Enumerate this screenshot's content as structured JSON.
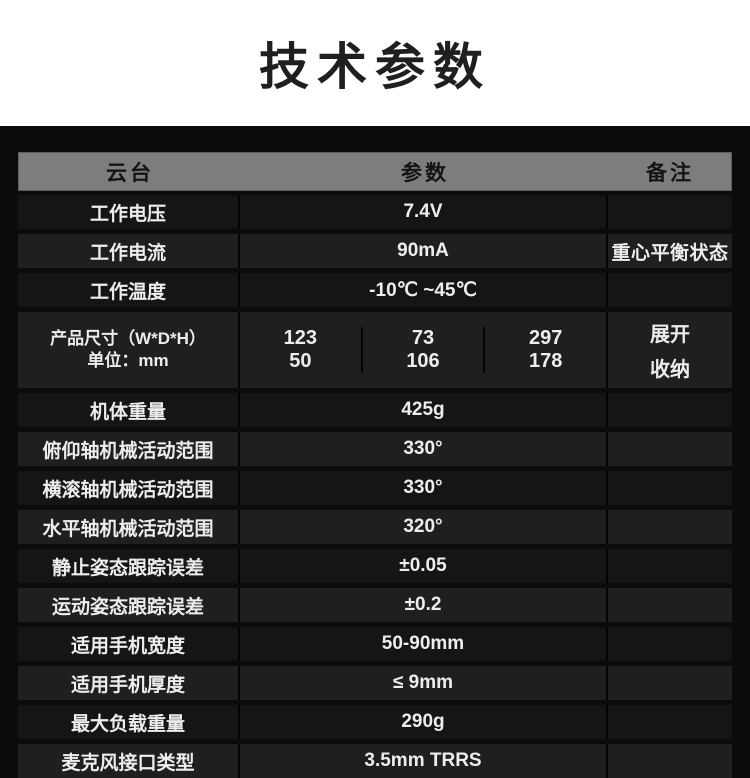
{
  "title": "技术参数",
  "colors": {
    "page_bg": "#ffffff",
    "band_bg": "#0b0b0b",
    "header_bg": "#7d7d7d",
    "row_dark": "#151515",
    "row_light": "#1f1f1f",
    "text_light": "#ededed",
    "text_dark": "#141414"
  },
  "table": {
    "headers": [
      "云台",
      "参数",
      "备注"
    ],
    "rows": [
      {
        "label": "工作电压",
        "value": "7.4V",
        "note": ""
      },
      {
        "label": "工作电流",
        "value": "90mA",
        "note": "重心平衡状态"
      },
      {
        "label": "工作温度",
        "value": "-10℃ ~45℃",
        "note": ""
      },
      {
        "label_line1": "产品尺寸（W*D*H）",
        "label_line2": "单位：mm",
        "dims": {
          "col1": {
            "top": "123",
            "bottom": "50"
          },
          "col2": {
            "top": "73",
            "bottom": "106"
          },
          "col3": {
            "top": "297",
            "bottom": "178"
          },
          "note_top": "展开",
          "note_bottom": "收纳"
        }
      },
      {
        "label": "机体重量",
        "value": "425g",
        "note": ""
      },
      {
        "label": "俯仰轴机械活动范围",
        "value": "330°",
        "note": ""
      },
      {
        "label": "横滚轴机械活动范围",
        "value": "330°",
        "note": ""
      },
      {
        "label": "水平轴机械活动范围",
        "value": "320°",
        "note": ""
      },
      {
        "label": "静止姿态跟踪误差",
        "value": "±0.05",
        "note": ""
      },
      {
        "label": "运动姿态跟踪误差",
        "value": "±0.2",
        "note": ""
      },
      {
        "label": "适用手机宽度",
        "value": "50-90mm",
        "note": ""
      },
      {
        "label": "适用手机厚度",
        "value": "≤ 9mm",
        "note": ""
      },
      {
        "label": "最大负载重量",
        "value": "290g",
        "note": ""
      },
      {
        "label": "麦克风接口类型",
        "value": "3.5mm TRRS",
        "note": ""
      }
    ]
  }
}
